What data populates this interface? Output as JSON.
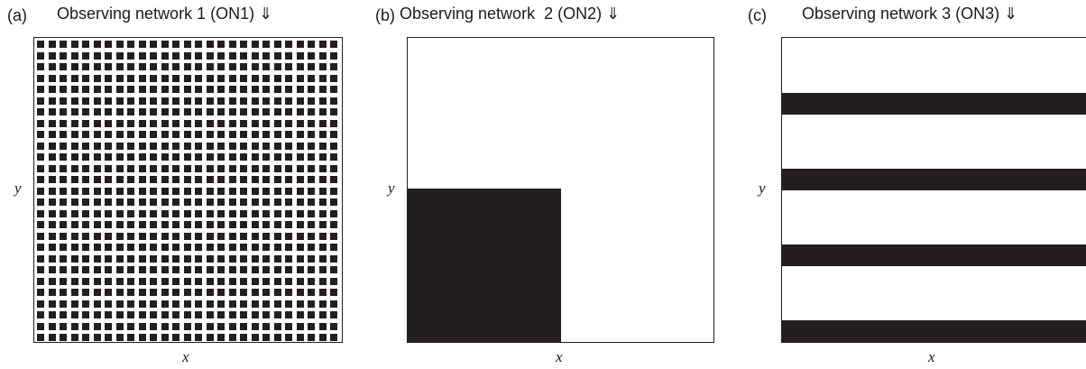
{
  "panels": [
    {
      "label": "(a)",
      "title": "Observing network 1 (ON1) ⇓",
      "x_label": "x",
      "y_label": "y",
      "pattern": "dense grid of square observation points",
      "grid_columns": 27,
      "grid_rows": 27
    },
    {
      "label": "(b)",
      "title": "Observing network  2 (ON2) ⇓",
      "x_label": "x",
      "y_label": "y",
      "pattern": "filled lower-left square region",
      "filled_fraction_x": 0.5,
      "filled_fraction_y": 0.5
    },
    {
      "label": "(c)",
      "title": "Observing network 3 (ON3) ⇓",
      "x_label": "x",
      "y_label": "y",
      "pattern": "four horizontal observation bands",
      "band_count": 4
    }
  ],
  "colors": {
    "ink": "#231f20",
    "background": "#ffffff"
  }
}
